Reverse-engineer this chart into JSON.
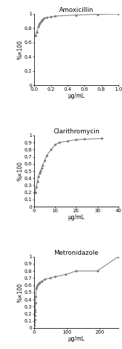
{
  "amoxicillin": {
    "title": "Amoxicillin",
    "xlabel": "μg/mL",
    "ylabel": "%×100",
    "xlim": [
      0,
      1.0
    ],
    "ylim": [
      0,
      1.0
    ],
    "xticks": [
      0,
      0.2,
      0.4,
      0.6,
      0.8,
      1.0
    ],
    "yticks": [
      0,
      0.2,
      0.4,
      0.6,
      0.8,
      1.0
    ],
    "ytick_labels": [
      "0",
      "0.2",
      "0.4",
      "0.6",
      "0.8",
      "1"
    ],
    "x": [
      0.015,
      0.03,
      0.05,
      0.06,
      0.07,
      0.08,
      0.09,
      0.1,
      0.12,
      0.15,
      0.2,
      0.25,
      0.5,
      0.75,
      1.0
    ],
    "y": [
      0.7,
      0.75,
      0.82,
      0.855,
      0.875,
      0.895,
      0.91,
      0.925,
      0.94,
      0.95,
      0.96,
      0.97,
      0.985,
      0.995,
      1.0
    ]
  },
  "clarithromycin": {
    "title": "Clarithromycin",
    "xlabel": "μg/mL",
    "ylabel": "%×100",
    "xlim": [
      0,
      40
    ],
    "ylim": [
      0,
      1.0
    ],
    "xticks": [
      0,
      10,
      20,
      30,
      40
    ],
    "yticks": [
      0,
      0.1,
      0.2,
      0.3,
      0.4,
      0.5,
      0.6,
      0.7,
      0.8,
      0.9,
      1.0
    ],
    "ytick_labels": [
      "0",
      "0.1",
      "0.2",
      "0.3",
      "0.4",
      "0.5",
      "0.6",
      "0.7",
      "0.8",
      "0.9",
      "1"
    ],
    "x": [
      0.5,
      1.0,
      1.5,
      2.0,
      2.5,
      3.0,
      3.5,
      4.0,
      5.0,
      6.0,
      8.0,
      10.0,
      12.0,
      16.0,
      20.0,
      24.0,
      32.0
    ],
    "y": [
      0.2,
      0.28,
      0.35,
      0.42,
      0.47,
      0.5,
      0.54,
      0.58,
      0.65,
      0.72,
      0.8,
      0.87,
      0.9,
      0.92,
      0.94,
      0.945,
      0.955
    ]
  },
  "metronidazole": {
    "title": "Metronidazole",
    "xlabel": "μg/mL",
    "ylabel": "%×100",
    "xlim": [
      0,
      256
    ],
    "ylim": [
      0,
      1.0
    ],
    "xticks": [
      0,
      100,
      200
    ],
    "yticks": [
      0,
      0.1,
      0.2,
      0.3,
      0.4,
      0.5,
      0.6,
      0.7,
      0.8,
      0.9,
      1.0
    ],
    "ytick_labels": [
      "0",
      "0.1",
      "0.2",
      "0.3",
      "0.4",
      "0.5",
      "0.6",
      "0.7",
      "0.8",
      "0.9",
      "1"
    ],
    "x": [
      0.5,
      1.0,
      1.5,
      2.0,
      2.5,
      3.0,
      4.0,
      5.0,
      6.0,
      8.0,
      12.0,
      16.0,
      24.0,
      32.0,
      48.0,
      64.0,
      96.0,
      128.0,
      192.0,
      256.0
    ],
    "y": [
      0.04,
      0.08,
      0.12,
      0.18,
      0.22,
      0.25,
      0.35,
      0.44,
      0.56,
      0.59,
      0.62,
      0.64,
      0.66,
      0.68,
      0.7,
      0.72,
      0.75,
      0.8,
      0.8,
      1.0
    ]
  },
  "line_color": "#808080",
  "marker": "o",
  "markersize": 2.2,
  "linewidth": 0.8,
  "title_fontsize": 6.5,
  "label_fontsize": 5.5,
  "tick_fontsize": 5.0
}
